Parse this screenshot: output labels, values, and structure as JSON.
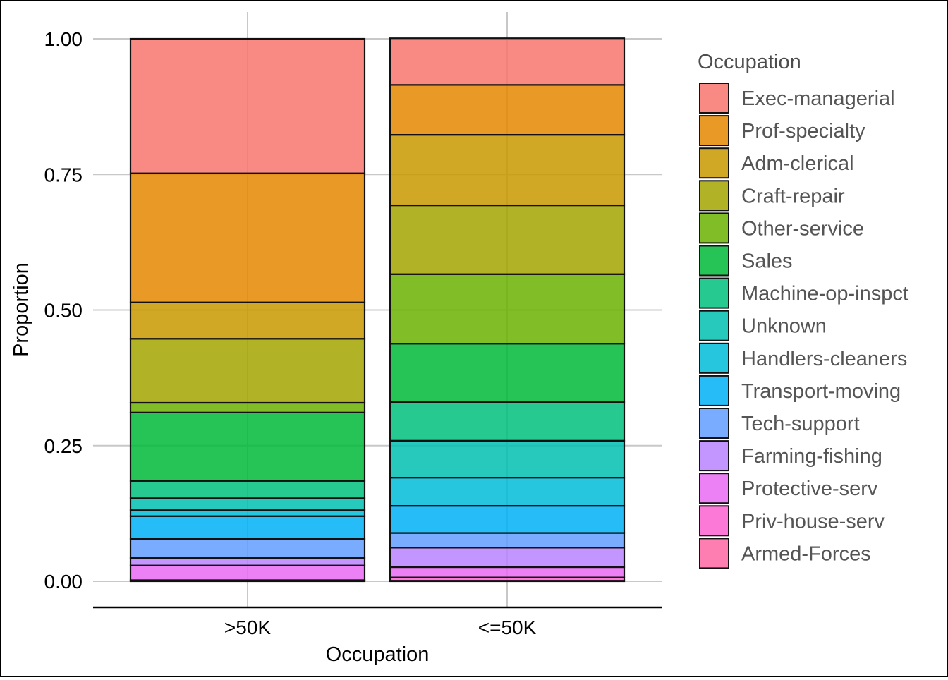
{
  "chart_data": {
    "type": "bar",
    "stacked": true,
    "xlabel": "Occupation",
    "ylabel": "Proportion",
    "ylim": [
      0,
      1
    ],
    "yticks": [
      "0.00",
      "0.25",
      "0.50",
      "0.75",
      "1.00"
    ],
    "ytick_values": [
      0,
      0.25,
      0.5,
      0.75,
      1.0
    ],
    "categories": [
      ">50K",
      "<=50K"
    ],
    "legend": {
      "title": "Occupation",
      "position": "right"
    },
    "series": [
      {
        "name": "Exec-managerial",
        "color": "#F8766D",
        "values": [
          0.248,
          0.086
        ]
      },
      {
        "name": "Prof-specialty",
        "color": "#E58700",
        "values": [
          0.238,
          0.092
        ]
      },
      {
        "name": "Adm-clerical",
        "color": "#C99800",
        "values": [
          0.067,
          0.13
        ]
      },
      {
        "name": "Craft-repair",
        "color": "#A3A500",
        "values": [
          0.118,
          0.127
        ]
      },
      {
        "name": "Other-service",
        "color": "#6BB100",
        "values": [
          0.018,
          0.128
        ]
      },
      {
        "name": "Sales",
        "color": "#00BA38",
        "values": [
          0.126,
          0.108
        ]
      },
      {
        "name": "Machine-op-inspct",
        "color": "#00BF7D",
        "values": [
          0.032,
          0.071
        ]
      },
      {
        "name": "Unknown",
        "color": "#00C0AF",
        "values": [
          0.022,
          0.068
        ]
      },
      {
        "name": "Handlers-cleaners",
        "color": "#00BCD8",
        "values": [
          0.011,
          0.052
        ]
      },
      {
        "name": "Transport-moving",
        "color": "#00B0F6",
        "values": [
          0.042,
          0.05
        ]
      },
      {
        "name": "Tech-support",
        "color": "#619CFF",
        "values": [
          0.035,
          0.027
        ]
      },
      {
        "name": "Farming-fishing",
        "color": "#B983FF",
        "values": [
          0.014,
          0.036
        ]
      },
      {
        "name": "Protective-serv",
        "color": "#E76BF3",
        "values": [
          0.027,
          0.019
        ]
      },
      {
        "name": "Priv-house-serv",
        "color": "#FD61D1",
        "values": [
          0.001,
          0.006
        ]
      },
      {
        "name": "Armed-Forces",
        "color": "#FF67A4",
        "values": [
          0.001,
          0.001
        ]
      }
    ]
  }
}
